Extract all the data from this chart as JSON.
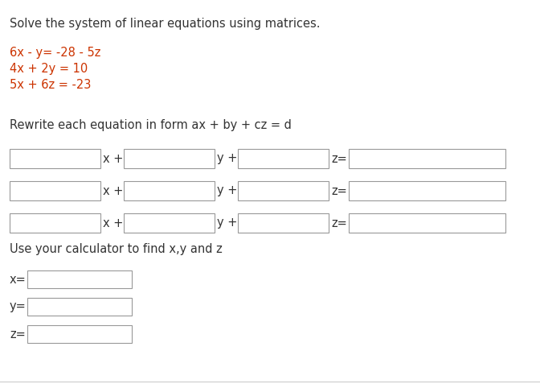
{
  "title": "Solve the system of linear equations using matrices.",
  "title_color": "#333333",
  "title_fontsize": 10.5,
  "eq1": "6x - y= -28 - 5z",
  "eq2": "4x + 2y = 10",
  "eq3": "5x + 6z = -23",
  "eq_color": "#cc3300",
  "eq_fontsize": 10.5,
  "rewrite_text": "Rewrite each equation in form ax + by + cz = d",
  "rewrite_color": "#333333",
  "rewrite_fontsize": 10.5,
  "calc_text": "Use your calculator to find x,y and z",
  "calc_fontsize": 10.5,
  "calc_color": "#333333",
  "box_edge_color": "#999999",
  "box_face_color": "#ffffff",
  "bg_color": "#ffffff",
  "sep_color": "#cccccc",
  "op_color": "#333333",
  "op_fontsize": 10.5,
  "label_color": "#333333",
  "label_fontsize": 10.5,
  "fig_w": 6.72,
  "fig_h": 4.82,
  "dpi": 100
}
